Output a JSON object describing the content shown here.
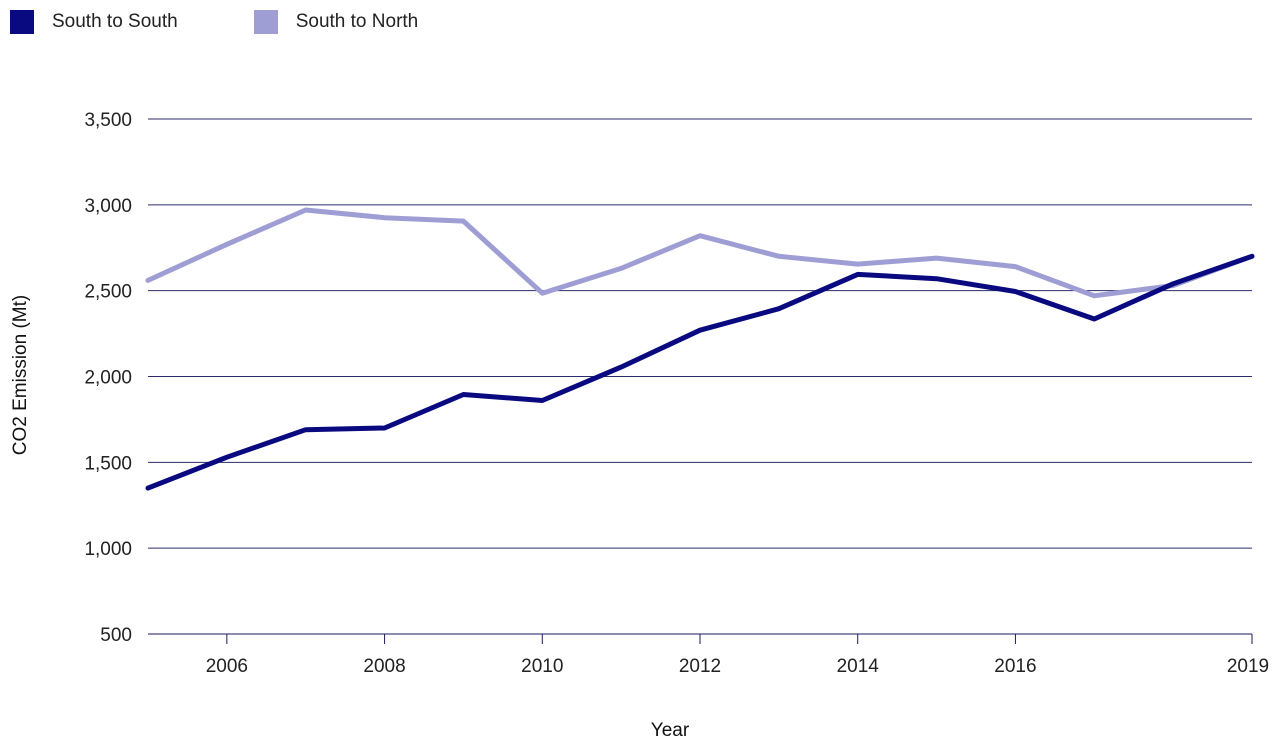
{
  "chart_data": {
    "type": "line",
    "title": "",
    "xlabel": "Year",
    "ylabel": "CO2 Emission (Mt)",
    "xlim": [
      2005,
      2019
    ],
    "ylim": [
      500,
      3500
    ],
    "xticks": [
      2006,
      2008,
      2010,
      2012,
      2014,
      2016,
      2019
    ],
    "yticks": [
      500,
      1000,
      1500,
      2000,
      2500,
      3000,
      3500
    ],
    "ytick_labels": [
      "500",
      "1,000",
      "1,500",
      "2,000",
      "2,500",
      "3,000",
      "3,500"
    ],
    "grid": "horizontal",
    "legend": "top-left",
    "x": [
      2005,
      2006,
      2007,
      2008,
      2009,
      2010,
      2011,
      2012,
      2013,
      2014,
      2015,
      2016,
      2017,
      2018,
      2019
    ],
    "series": [
      {
        "name": "South to South",
        "color": "#0a0a80",
        "values": [
          1350,
          1530,
          1690,
          1700,
          1895,
          1860,
          2055,
          2270,
          2395,
          2595,
          2570,
          2495,
          2335,
          2540,
          2700
        ]
      },
      {
        "name": "South to North",
        "color": "#9e9ed4",
        "values": [
          2560,
          2770,
          2970,
          2925,
          2905,
          2485,
          2630,
          2820,
          2700,
          2655,
          2690,
          2640,
          2470,
          2530,
          2700
        ]
      }
    ]
  }
}
